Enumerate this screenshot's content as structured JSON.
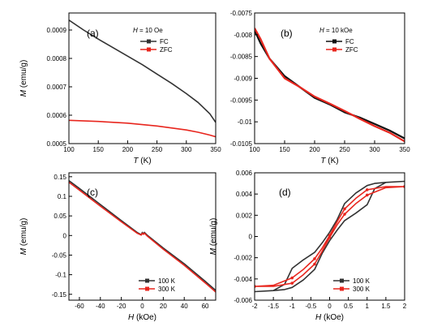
{
  "chart_data": [
    {
      "id": "a",
      "type": "line",
      "panel_label": "(a)",
      "condition": {
        "var": "H",
        "text": " = 10 Oe"
      },
      "xlabel": {
        "var": "T",
        "unit": " (K)"
      },
      "ylabel": {
        "var": "M",
        "unit": " (emu/g)"
      },
      "xlim": [
        100,
        350
      ],
      "ylim": [
        0.0005,
        0.00096
      ],
      "xticks": [
        100,
        150,
        200,
        250,
        300,
        350
      ],
      "xtick_labels": [
        "100",
        "150",
        "200",
        "250",
        "300",
        "350"
      ],
      "yticks": [
        0.0005,
        0.0006,
        0.0007,
        0.0008,
        0.0009
      ],
      "ytick_labels": [
        "0.0005",
        "0.0006",
        "0.0007",
        "0.0008",
        "0.0009"
      ],
      "legend": "top-right",
      "series": [
        {
          "name": "FC",
          "color": "#333333",
          "x": [
            100,
            125,
            150,
            175,
            200,
            225,
            250,
            275,
            300,
            320,
            340,
            350
          ],
          "y": [
            0.000935,
            0.0009,
            0.000868,
            0.000838,
            0.000808,
            0.000778,
            0.000745,
            0.000712,
            0.000676,
            0.000645,
            0.000605,
            0.000575
          ]
        },
        {
          "name": "ZFC",
          "color": "#e8261e",
          "x": [
            100,
            150,
            200,
            250,
            300,
            320,
            340,
            350
          ],
          "y": [
            0.000582,
            0.000578,
            0.000572,
            0.000562,
            0.000548,
            0.00054,
            0.00053,
            0.000524
          ]
        }
      ]
    },
    {
      "id": "b",
      "type": "line",
      "panel_label": "(b)",
      "condition": {
        "var": "H",
        "text": " = 10 kOe"
      },
      "xlabel": {
        "var": "T",
        "unit": " (K)"
      },
      "ylabel": {
        "var": "",
        "unit": ""
      },
      "xlim": [
        100,
        350
      ],
      "ylim": [
        -0.0105,
        -0.0075
      ],
      "xticks": [
        100,
        150,
        200,
        250,
        300,
        350
      ],
      "xtick_labels": [
        "100",
        "150",
        "200",
        "250",
        "300",
        "350"
      ],
      "yticks": [
        -0.0075,
        -0.008,
        -0.0085,
        -0.009,
        -0.0095,
        -0.01,
        -0.0105
      ],
      "ytick_labels": [
        "-0.0075",
        "-0.008",
        "-0.0085",
        "-0.009",
        "-0.0095",
        "-0.01",
        "-0.0105"
      ],
      "legend": "top-center",
      "series": [
        {
          "name": "FC",
          "color": "#111111",
          "x": [
            100,
            110,
            125,
            150,
            175,
            200,
            225,
            250,
            275,
            300,
            325,
            350
          ],
          "y": [
            -0.0079,
            -0.0082,
            -0.00855,
            -0.00895,
            -0.0092,
            -0.00945,
            -0.0096,
            -0.00978,
            -0.0099,
            -0.01005,
            -0.0102,
            -0.01038
          ]
        },
        {
          "name": "ZFC",
          "color": "#e8261e",
          "x": [
            100,
            110,
            125,
            150,
            175,
            200,
            225,
            250,
            275,
            300,
            325,
            350
          ],
          "y": [
            -0.00785,
            -0.0081,
            -0.00855,
            -0.009,
            -0.0092,
            -0.00942,
            -0.00958,
            -0.00975,
            -0.00993,
            -0.0101,
            -0.01025,
            -0.01045
          ]
        }
      ]
    },
    {
      "id": "c",
      "type": "line",
      "panel_label": "(c)",
      "condition": null,
      "xlabel": {
        "var": "H",
        "unit": " (kOe)"
      },
      "ylabel": {
        "var": "M",
        "unit": " (emu/g)"
      },
      "xlim": [
        -70,
        70
      ],
      "ylim": [
        -0.165,
        0.16
      ],
      "xticks": [
        -60,
        -40,
        -20,
        0,
        20,
        40,
        60
      ],
      "xtick_labels": [
        "-60",
        "-40",
        "-20",
        "0",
        "20",
        "40",
        "60"
      ],
      "yticks": [
        0.15,
        0.1,
        0.05,
        0,
        -0.05,
        -0.1,
        -0.15
      ],
      "ytick_labels": [
        "0.15",
        "0.1",
        "0.05",
        "0",
        "-0.05",
        "-0.1",
        "-0.15"
      ],
      "legend": "bottom-right",
      "series": [
        {
          "name": "100 K",
          "color": "#333333",
          "x": [
            -70,
            -60,
            -40,
            -20,
            -5,
            -1,
            0,
            1,
            2,
            5,
            20,
            40,
            60,
            70
          ],
          "y": [
            0.14,
            0.12,
            0.079,
            0.038,
            0.008,
            0.002,
            0.008,
            0.004,
            0.008,
            0.0,
            -0.032,
            -0.072,
            -0.117,
            -0.14
          ]
        },
        {
          "name": "300 K",
          "color": "#e8261e",
          "x": [
            -70,
            -60,
            -40,
            -20,
            -5,
            -1,
            0,
            1,
            2,
            5,
            20,
            40,
            60,
            70
          ],
          "y": [
            0.136,
            0.116,
            0.075,
            0.035,
            0.006,
            0.001,
            0.006,
            0.003,
            0.006,
            -0.002,
            -0.035,
            -0.076,
            -0.121,
            -0.144
          ]
        }
      ]
    },
    {
      "id": "d",
      "type": "line",
      "panel_label": "(d)",
      "condition": null,
      "xlabel": {
        "var": "H",
        "unit": " (kOe)"
      },
      "ylabel": {
        "var": "M",
        "unit": " (emu/g)"
      },
      "xlim": [
        -2,
        2
      ],
      "ylim": [
        -0.006,
        0.006
      ],
      "xticks": [
        -2,
        -1.5,
        -1,
        -0.5,
        0,
        0.5,
        1,
        1.5,
        2
      ],
      "xtick_labels": [
        "-2",
        "-1.5",
        "-1",
        "-0.5",
        "0",
        "0.5",
        "1",
        "1.5",
        "2"
      ],
      "yticks": [
        0.006,
        0.004,
        0.002,
        0,
        -0.002,
        -0.004,
        -0.006
      ],
      "ytick_labels": [
        "0.006",
        "0.004",
        "0.002",
        "0",
        "-0.002",
        "-0.004",
        "-0.006"
      ],
      "legend": "bottom-right",
      "series": [
        {
          "name": "100 K",
          "color": "#333333",
          "x": [
            2,
            1.5,
            1.2,
            1,
            0.7,
            0.4,
            0.2,
            0,
            -0.2,
            -0.4,
            -0.7,
            -1,
            -1.2,
            -1.5,
            -2,
            -1.5,
            -1.2,
            -1,
            -0.7,
            -0.4,
            -0.2,
            0,
            0.2,
            0.4,
            0.7,
            1,
            1.2,
            1.5,
            2
          ],
          "y": [
            0.0052,
            0.0051,
            0.005,
            0.0048,
            0.0041,
            0.0031,
            0.0016,
            0.0004,
            -0.0006,
            -0.0015,
            -0.0022,
            -0.003,
            -0.0045,
            -0.0051,
            -0.0052,
            -0.0051,
            -0.005,
            -0.0048,
            -0.0041,
            -0.0031,
            -0.0016,
            -0.0004,
            0.0006,
            0.0015,
            0.0022,
            0.003,
            0.0045,
            0.0051,
            0.0052
          ]
        },
        {
          "name": "300 K",
          "color": "#e8261e",
          "x": [
            2,
            1.5,
            1,
            0.7,
            0.4,
            0.2,
            0,
            -0.2,
            -0.4,
            -0.7,
            -1,
            -1.5,
            -2,
            -1.5,
            -1,
            -0.7,
            -0.4,
            -0.2,
            0,
            0.2,
            0.4,
            0.7,
            1,
            1.5,
            2
          ],
          "y": [
            0.0047,
            0.0047,
            0.0044,
            0.0036,
            0.0026,
            0.0014,
            0.0001,
            -0.0011,
            -0.0021,
            -0.0031,
            -0.0039,
            -0.0046,
            -0.0047,
            -0.0047,
            -0.0044,
            -0.0036,
            -0.0026,
            -0.0014,
            -0.0001,
            0.0011,
            0.0021,
            0.0031,
            0.0039,
            0.0046,
            0.0047
          ]
        }
      ]
    }
  ]
}
